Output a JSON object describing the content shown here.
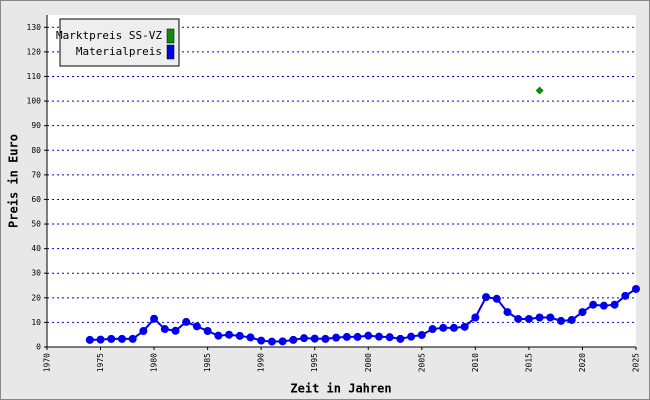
{
  "chart_data": {
    "type": "line",
    "xlabel": "Zeit in Jahren",
    "ylabel": "Preis in Euro",
    "xlim": [
      1970,
      2025
    ],
    "xticks": [
      1970,
      1975,
      1980,
      1985,
      1990,
      1995,
      2000,
      2005,
      2010,
      2015,
      2020,
      2025
    ],
    "ylim": [
      0,
      135
    ],
    "yticks": [
      0,
      10,
      20,
      30,
      40,
      50,
      60,
      70,
      80,
      90,
      100,
      110,
      120,
      130
    ],
    "grid": true,
    "legend": "upper left",
    "series": [
      {
        "name": "Marktpreis SS-VZ",
        "color": "#108a10",
        "marker": "diamond",
        "x": [
          2016
        ],
        "values": [
          104.3
        ]
      },
      {
        "name": "Materialpreis",
        "color": "#0000ee",
        "marker": "circle",
        "x": [
          1974,
          1975,
          1976,
          1977,
          1978,
          1979,
          1980,
          1981,
          1982,
          1983,
          1984,
          1985,
          1986,
          1987,
          1988,
          1989,
          1990,
          1991,
          1992,
          1993,
          1994,
          1995,
          1996,
          1997,
          1998,
          1999,
          2000,
          2001,
          2002,
          2003,
          2004,
          2005,
          2006,
          2007,
          2008,
          2009,
          2010,
          2011,
          2012,
          2013,
          2014,
          2015,
          2016,
          2017,
          2018,
          2019,
          2020,
          2021,
          2022,
          2023,
          2024,
          2025
        ],
        "values": [
          2.9,
          3,
          3.3,
          3.3,
          3.3,
          6.5,
          11.5,
          7.3,
          6.6,
          10.2,
          8.4,
          6.5,
          4.6,
          5,
          4.5,
          3.9,
          2.6,
          2.2,
          2.3,
          2.9,
          3.6,
          3.4,
          3.3,
          3.8,
          4.1,
          4.1,
          4.6,
          4.2,
          4,
          3.3,
          4.2,
          4.9,
          7.3,
          7.8,
          7.8,
          8.2,
          12,
          20.3,
          19.6,
          14.2,
          11.4,
          11.4,
          12,
          12,
          10.6,
          11,
          14.2,
          17.2,
          16.8,
          17.2,
          20.8,
          23.6
        ]
      }
    ]
  }
}
